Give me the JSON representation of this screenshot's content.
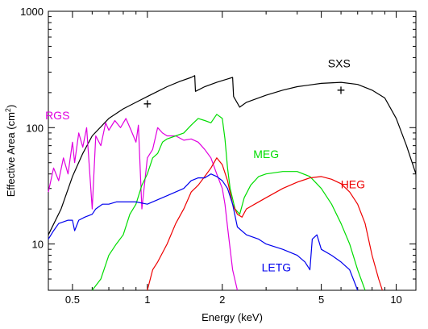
{
  "chart_data": {
    "type": "line",
    "title": "",
    "xlabel": "Energy (keV)",
    "ylabel_text": "Effective Area (cm",
    "ylabel_sup": "2",
    "ylabel_close": ")",
    "xscale": "log",
    "yscale": "log",
    "xlim": [
      0.4,
      12
    ],
    "ylim": [
      4,
      1000
    ],
    "grid": false,
    "x_ticks": [
      {
        "value": 0.5,
        "label": "0.5"
      },
      {
        "value": 1,
        "label": "1"
      },
      {
        "value": 2,
        "label": "2"
      },
      {
        "value": 5,
        "label": "5"
      },
      {
        "value": 10,
        "label": "10"
      }
    ],
    "y_ticks": [
      {
        "value": 10,
        "label": "10"
      },
      {
        "value": 100,
        "label": "100"
      },
      {
        "value": 1000,
        "label": "1000"
      }
    ],
    "series": [
      {
        "name": "SXS",
        "color": "#000000",
        "label_at": [
          5.9,
          330
        ],
        "points": [
          [
            0.4,
            12
          ],
          [
            0.45,
            20
          ],
          [
            0.5,
            38
          ],
          [
            0.55,
            60
          ],
          [
            0.6,
            85
          ],
          [
            0.7,
            120
          ],
          [
            0.8,
            145
          ],
          [
            0.9,
            165
          ],
          [
            1.0,
            185
          ],
          [
            1.1,
            205
          ],
          [
            1.2,
            225
          ],
          [
            1.35,
            250
          ],
          [
            1.5,
            270
          ],
          [
            1.55,
            280
          ],
          [
            1.56,
            205
          ],
          [
            1.7,
            225
          ],
          [
            1.9,
            245
          ],
          [
            2.1,
            262
          ],
          [
            2.2,
            270
          ],
          [
            2.22,
            185
          ],
          [
            2.35,
            150
          ],
          [
            2.5,
            165
          ],
          [
            3,
            190
          ],
          [
            3.5,
            210
          ],
          [
            4,
            225
          ],
          [
            5,
            240
          ],
          [
            6,
            245
          ],
          [
            7,
            235
          ],
          [
            8,
            210
          ],
          [
            9,
            180
          ],
          [
            10,
            120
          ],
          [
            11,
            70
          ],
          [
            12,
            40
          ]
        ]
      },
      {
        "name": "RGS",
        "color": "#e000e0",
        "label_at": [
          0.435,
          118
        ],
        "points": [
          [
            0.4,
            28
          ],
          [
            0.42,
            45
          ],
          [
            0.44,
            35
          ],
          [
            0.46,
            55
          ],
          [
            0.48,
            40
          ],
          [
            0.5,
            75
          ],
          [
            0.51,
            50
          ],
          [
            0.53,
            90
          ],
          [
            0.55,
            68
          ],
          [
            0.57,
            100
          ],
          [
            0.6,
            20
          ],
          [
            0.62,
            85
          ],
          [
            0.65,
            70
          ],
          [
            0.68,
            110
          ],
          [
            0.7,
            95
          ],
          [
            0.74,
            115
          ],
          [
            0.78,
            100
          ],
          [
            0.82,
            120
          ],
          [
            0.86,
            95
          ],
          [
            0.9,
            75
          ],
          [
            0.92,
            105
          ],
          [
            0.95,
            20
          ],
          [
            1.0,
            55
          ],
          [
            1.05,
            65
          ],
          [
            1.1,
            100
          ],
          [
            1.15,
            90
          ],
          [
            1.2,
            85
          ],
          [
            1.3,
            85
          ],
          [
            1.4,
            78
          ],
          [
            1.5,
            80
          ],
          [
            1.6,
            75
          ],
          [
            1.7,
            65
          ],
          [
            1.8,
            55
          ],
          [
            1.9,
            40
          ],
          [
            2.0,
            30
          ],
          [
            2.05,
            22
          ],
          [
            2.1,
            14
          ],
          [
            2.2,
            6
          ],
          [
            2.3,
            4
          ]
        ]
      },
      {
        "name": "MEG",
        "color": "#00dd00",
        "label_at": [
          3.0,
          55
        ],
        "points": [
          [
            0.6,
            4
          ],
          [
            0.65,
            5
          ],
          [
            0.7,
            8
          ],
          [
            0.75,
            10
          ],
          [
            0.8,
            12
          ],
          [
            0.85,
            18
          ],
          [
            0.9,
            22
          ],
          [
            0.95,
            32
          ],
          [
            1.0,
            40
          ],
          [
            1.05,
            55
          ],
          [
            1.1,
            60
          ],
          [
            1.15,
            75
          ],
          [
            1.2,
            80
          ],
          [
            1.3,
            85
          ],
          [
            1.4,
            90
          ],
          [
            1.5,
            105
          ],
          [
            1.6,
            120
          ],
          [
            1.7,
            115
          ],
          [
            1.8,
            110
          ],
          [
            1.9,
            130
          ],
          [
            2.0,
            120
          ],
          [
            2.05,
            80
          ],
          [
            2.1,
            45
          ],
          [
            2.15,
            30
          ],
          [
            2.25,
            20
          ],
          [
            2.35,
            18
          ],
          [
            2.45,
            25
          ],
          [
            2.6,
            32
          ],
          [
            2.8,
            38
          ],
          [
            3,
            40
          ],
          [
            3.5,
            42
          ],
          [
            4,
            42
          ],
          [
            4.5,
            38
          ],
          [
            5,
            30
          ],
          [
            5.5,
            22
          ],
          [
            6,
            15
          ],
          [
            6.5,
            10
          ],
          [
            7,
            6
          ],
          [
            7.5,
            4
          ]
        ]
      },
      {
        "name": "HEG",
        "color": "#ee0000",
        "label_at": [
          6.7,
          30
        ],
        "points": [
          [
            1.0,
            4
          ],
          [
            1.05,
            6
          ],
          [
            1.1,
            7
          ],
          [
            1.2,
            10
          ],
          [
            1.3,
            15
          ],
          [
            1.4,
            20
          ],
          [
            1.5,
            28
          ],
          [
            1.6,
            32
          ],
          [
            1.7,
            38
          ],
          [
            1.8,
            45
          ],
          [
            1.9,
            55
          ],
          [
            2.0,
            48
          ],
          [
            2.1,
            35
          ],
          [
            2.2,
            22
          ],
          [
            2.3,
            18
          ],
          [
            2.4,
            17
          ],
          [
            2.5,
            20
          ],
          [
            2.7,
            22
          ],
          [
            3,
            25
          ],
          [
            3.5,
            30
          ],
          [
            4,
            34
          ],
          [
            4.5,
            37
          ],
          [
            5,
            38
          ],
          [
            5.5,
            36
          ],
          [
            6,
            33
          ],
          [
            6.5,
            28
          ],
          [
            7,
            22
          ],
          [
            7.5,
            15
          ],
          [
            8,
            8
          ],
          [
            8.5,
            5
          ],
          [
            8.8,
            4
          ]
        ]
      },
      {
        "name": "LETG",
        "color": "#0000ee",
        "label_at": [
          3.3,
          5.8
        ],
        "points": [
          [
            0.4,
            11
          ],
          [
            0.42,
            13
          ],
          [
            0.44,
            15
          ],
          [
            0.48,
            16
          ],
          [
            0.5,
            16
          ],
          [
            0.51,
            13
          ],
          [
            0.53,
            16
          ],
          [
            0.56,
            17
          ],
          [
            0.6,
            18
          ],
          [
            0.62,
            20
          ],
          [
            0.66,
            22
          ],
          [
            0.7,
            22
          ],
          [
            0.75,
            23
          ],
          [
            0.8,
            23
          ],
          [
            0.9,
            23
          ],
          [
            1.0,
            22
          ],
          [
            1.1,
            24
          ],
          [
            1.2,
            26
          ],
          [
            1.4,
            30
          ],
          [
            1.5,
            35
          ],
          [
            1.6,
            37
          ],
          [
            1.7,
            37
          ],
          [
            1.8,
            40
          ],
          [
            1.9,
            38
          ],
          [
            2.0,
            35
          ],
          [
            2.1,
            30
          ],
          [
            2.2,
            22
          ],
          [
            2.3,
            14
          ],
          [
            2.5,
            12
          ],
          [
            2.8,
            11
          ],
          [
            3.0,
            10
          ],
          [
            3.5,
            9
          ],
          [
            4.0,
            8
          ],
          [
            4.3,
            7
          ],
          [
            4.5,
            6
          ],
          [
            4.6,
            11
          ],
          [
            4.8,
            12
          ],
          [
            5,
            9
          ],
          [
            5.5,
            8
          ],
          [
            6,
            7
          ],
          [
            6.5,
            6
          ],
          [
            7,
            4
          ]
        ]
      }
    ],
    "markers": [
      {
        "symbol": "+",
        "x": 1.0,
        "y": 160
      },
      {
        "symbol": "+",
        "x": 6.0,
        "y": 210
      }
    ]
  }
}
